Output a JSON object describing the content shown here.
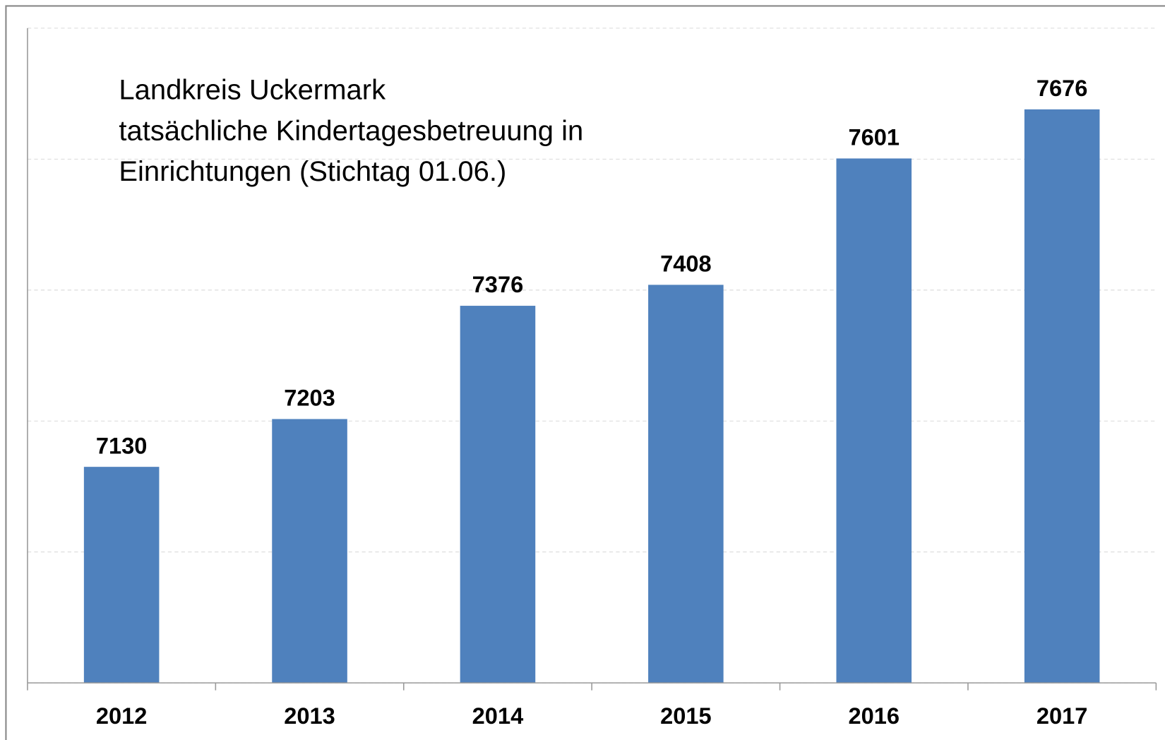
{
  "chart_data": {
    "type": "bar",
    "title": [
      "Landkreis Uckermark",
      "tatsächliche Kindertagesbetreuung in",
      "Einrichtungen (Stichtag 01.06.)"
    ],
    "categories": [
      "2012",
      "2013",
      "2014",
      "2015",
      "2016",
      "2017"
    ],
    "values": [
      7130,
      7203,
      7376,
      7408,
      7601,
      7676
    ],
    "color": "#4f81bd",
    "ylim": [
      6800,
      7800
    ],
    "yticks": [
      6800,
      7000,
      7200,
      7400,
      7600,
      7800
    ],
    "grid": true
  }
}
